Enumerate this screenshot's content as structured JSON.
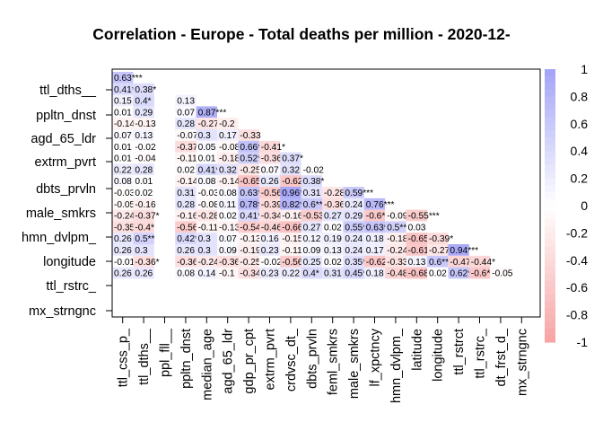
{
  "chart_data": {
    "type": "heatmap",
    "title": "Correlation - Europe - Total deaths per million - 2020-12-",
    "row_labels": [
      "ttl_dths__",
      "ppltn_dnst",
      "agd_65_ldr",
      "extrm_pvrt",
      "dbts_prvln",
      "male_smkrs",
      "hmn_dvlpm_",
      "longitude",
      "ttl_rstrc_",
      "mx_strngnc"
    ],
    "column_labels": [
      "ttl_css_p_",
      "ttl_dths__",
      "ppl_fll__",
      "ppltn_dnst",
      "median_age",
      "agd_65_ldr",
      "gdp_pr_cpt",
      "extrm_pvrt",
      "crdvsc_dt_",
      "dbts_prvln",
      "feml_smkrs",
      "male_smkrs",
      "lf_xpctncy",
      "hmn_dvlpm_",
      "latitude",
      "longitude",
      "ttl_rstrct",
      "ttl_rstrc_",
      "dt_frst_d_",
      "mx_strngnc"
    ],
    "cells": [
      [
        "0.63***"
      ],
      [
        "0.41*",
        "0.38*"
      ],
      [
        "0.15",
        "0.4*",
        "",
        "0.13"
      ],
      [
        "0.01",
        "0.29",
        "",
        "0.07",
        "0.87***"
      ],
      [
        "-0.14",
        "-0.13",
        "",
        "0.28",
        "-0.27",
        "-0.2"
      ],
      [
        "0.07",
        "0.13",
        "",
        "-0.07",
        "0.3",
        "0.17",
        "-0.33"
      ],
      [
        "0.01",
        "-0.02",
        "",
        "-0.37*",
        "0.05",
        "-0.08",
        "0.66***",
        "-0.41*"
      ],
      [
        "0.01",
        "-0.04",
        "",
        "-0.11",
        "0.01",
        "-0.18",
        "0.52**",
        "-0.36*",
        "0.37*"
      ],
      [
        "0.22",
        "0.28",
        "",
        "0.02",
        "0.41*",
        "0.32",
        "-0.25",
        "0.07",
        "0.32",
        "-0.02"
      ],
      [
        "0.08",
        "0.01",
        "",
        "-0.14",
        "0.08",
        "-0.14",
        "-0.65***",
        "0.26",
        "-0.62***",
        "0.38*"
      ],
      [
        "-0.03",
        "0.02",
        "",
        "0.31",
        "-0.03",
        "0.08",
        "0.63***",
        "-0.56**",
        "0.96***",
        "0.31",
        "-0.28",
        "0.59***"
      ],
      [
        "-0.05",
        "-0.16",
        "",
        "0.28",
        "-0.08",
        "0.11",
        "0.78***",
        "-0.39*",
        "0.82***",
        "0.6***",
        "-0.36*",
        "0.24",
        "0.76***"
      ],
      [
        "-0.24",
        "-0.37*",
        "",
        "-0.16",
        "-0.28",
        "0.02",
        "0.41*",
        "-0.34",
        "-0.16",
        "-0.53**",
        "0.27",
        "0.29",
        "-0.6***",
        "-0.09",
        "-0.55***"
      ],
      [
        "-0.35*",
        "-0.4*",
        "",
        "-0.56***",
        "-0.11",
        "-0.13",
        "-0.54***",
        "-0.46**",
        "-0.66***",
        "0.27",
        "0.02",
        "0.55***",
        "0.63***",
        "0.5**",
        "0.03"
      ],
      [
        "0.26",
        "0.5**",
        "",
        "0.42*",
        "0.3",
        "0.07",
        "-0.13",
        "0.16",
        "-0.15",
        "0.12",
        "0.19",
        "0.24",
        "0.18",
        "-0.18",
        "-0.65***",
        "-0.39*"
      ],
      [
        "0.26",
        "0.3",
        "",
        "0.26",
        "0.3",
        "0.09",
        "-0.19",
        "0.23",
        "-0.11",
        "0.09",
        "0.13",
        "0.24",
        "0.17",
        "-0.24",
        "-0.61***",
        "-0.27",
        "0.94***"
      ],
      [
        "-0.01",
        "-0.36*",
        "",
        "-0.36*",
        "-0.24",
        "-0.36*",
        "-0.25",
        "-0.02",
        "-0.56***",
        "0.25",
        "0.02",
        "0.35*",
        "-0.62***",
        "-0.33",
        "0.13",
        "0.6***",
        "-0.47**",
        "-0.44*"
      ],
      [
        "0.26",
        "0.26",
        "",
        "0.08",
        "0.14",
        "-0.1",
        "-0.34",
        "0.23",
        "0.22",
        "0.4*",
        "0.31",
        "0.45**",
        "0.18",
        "-0.48**",
        "-0.68***",
        "0.02",
        "0.62***",
        "-0.6***",
        "-0.05"
      ]
    ],
    "colorbar": {
      "ticks": [
        "1",
        "0.8",
        "0.6",
        "0.4",
        "0.2",
        "0",
        "-0.2",
        "-0.4",
        "-0.6",
        "-0.8",
        "-1"
      ],
      "range": [
        -1,
        1
      ],
      "positive_color": "#5858f0",
      "negative_color": "#f05858",
      "zero_color": "#ffffff"
    },
    "grid": false,
    "legend_position": "right"
  }
}
